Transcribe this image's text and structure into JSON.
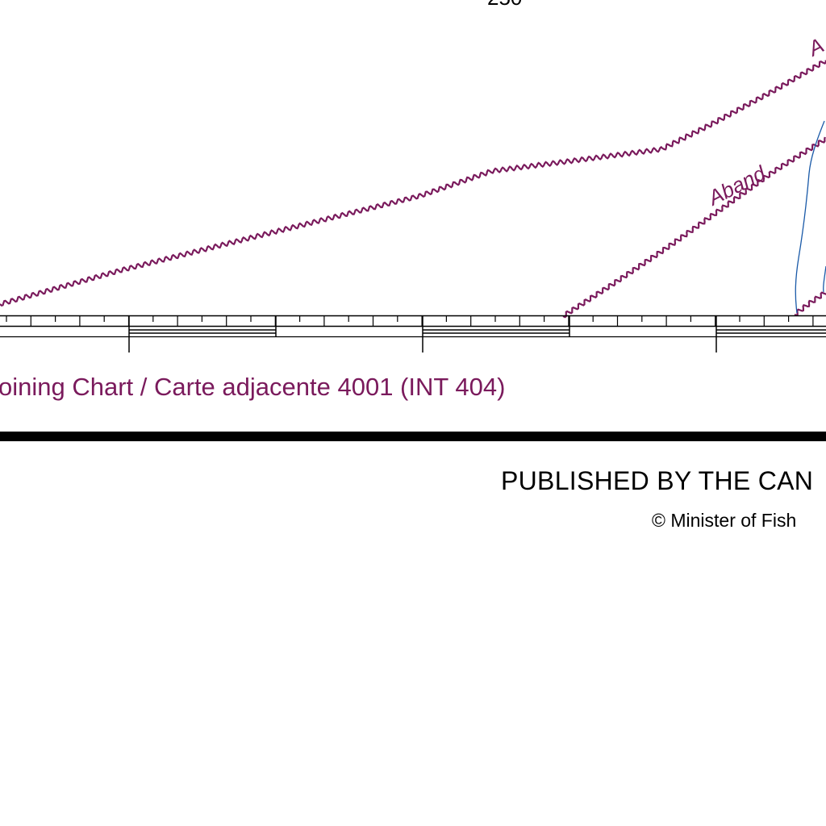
{
  "map": {
    "depth_label": "250",
    "cable_labels": [
      "Aband",
      "A"
    ],
    "adjoining_chart": "oining Chart / Carte adjacente 4001 (INT 404)",
    "publisher_line": "PUBLISHED BY THE CAN",
    "copyright_line": "© Minister of Fish",
    "colors": {
      "cable": "#7a1a5c",
      "magenta_text": "#7a1a5c",
      "contour": "#1a5aa8",
      "border": "#000000"
    }
  }
}
